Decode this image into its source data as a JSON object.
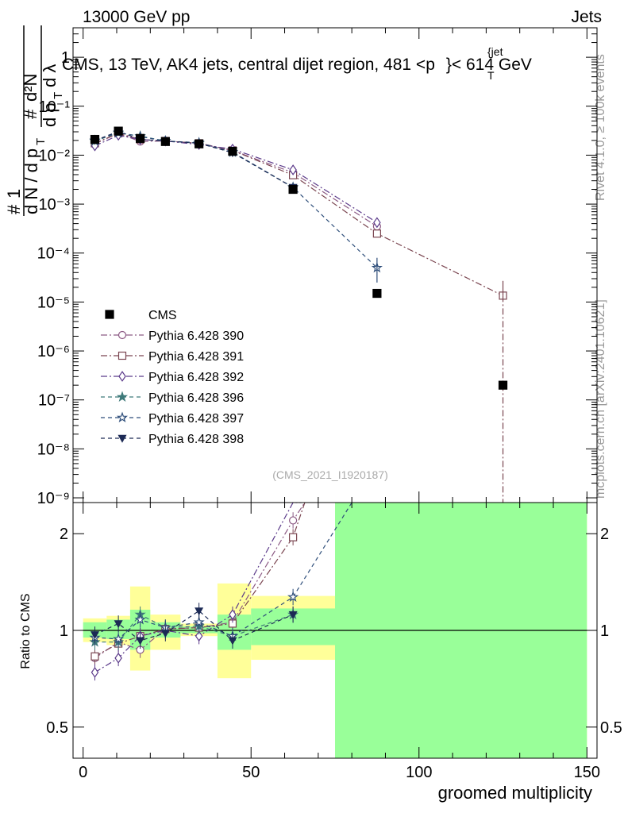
{
  "header": {
    "left": "13000 GeV pp",
    "right": "Jets",
    "plot_title": "CMS, 13 TeV, AK4 jets, central dijet region, 481 <p",
    "plot_title_sup": "{jet",
    "plot_title_sub": "T",
    "plot_title_end": "}< 614 GeV",
    "watermark": "(CMS_2021_I1920187)",
    "side_top": "Rivet 4.1.0, ≥ 100k events",
    "side_bottom": "mcplots.cern.ch [arXiv:2401.10621]"
  },
  "chart_data": [
    {
      "type": "scatter",
      "panel": "main",
      "yscale": "log",
      "title": "CMS, 13 TeV, AK4 jets, central dijet region, 481 <p_T^{jet}< 614 GeV",
      "xlabel": "groomed multiplicity",
      "ylabel": "1/(dN/dp_T) d²N/(dp_T dλ)",
      "xlim": [
        -3,
        153
      ],
      "ylim": [
        8e-10,
        4
      ],
      "y_ticks": [
        {
          "v": 1,
          "label": "1"
        },
        {
          "v": 0.1,
          "label": "10⁻¹"
        },
        {
          "v": 0.01,
          "label": "10⁻²"
        },
        {
          "v": 0.001,
          "label": "10⁻³"
        },
        {
          "v": 0.0001,
          "label": "10⁻⁴"
        },
        {
          "v": 1e-05,
          "label": "10⁻⁵"
        },
        {
          "v": 1e-06,
          "label": "10⁻⁶"
        },
        {
          "v": 1e-07,
          "label": "10⁻⁷"
        },
        {
          "v": 1e-08,
          "label": "10⁻⁸"
        },
        {
          "v": 1e-09,
          "label": "10⁻⁹"
        }
      ],
      "data": {
        "name": "CMS",
        "x": [
          3.5,
          10.5,
          17,
          24.5,
          34.5,
          44.5,
          62.5,
          87.5,
          125
        ],
        "y": [
          0.021,
          0.031,
          0.022,
          0.019,
          0.017,
          0.012,
          0.002,
          1.5e-05,
          2e-07
        ]
      },
      "series": [
        {
          "name": "Pythia 6.428 390",
          "color": "#8c5a84",
          "dash": "8,3,2,3",
          "marker": "circle-open",
          "x": [
            3.5,
            10.5,
            17,
            24.5,
            34.5,
            44.5,
            62.5,
            87.5
          ],
          "y": [
            0.017,
            0.028,
            0.019,
            0.0195,
            0.0175,
            0.0125,
            0.0044,
            0.00035
          ]
        },
        {
          "name": "Pythia 6.428 391",
          "color": "#7a4550",
          "dash": "8,3,2,3",
          "marker": "square-open",
          "x": [
            3.5,
            10.5,
            17,
            24.5,
            34.5,
            44.5,
            62.5,
            87.5,
            125
          ],
          "y": [
            0.0175,
            0.028,
            0.021,
            0.0195,
            0.0175,
            0.0125,
            0.0039,
            0.00025,
            1.35e-05
          ]
        },
        {
          "name": "Pythia 6.428 392",
          "color": "#5b3a8a",
          "dash": "8,3,2,3",
          "marker": "diamond-open",
          "x": [
            3.5,
            10.5,
            17,
            24.5,
            34.5,
            44.5,
            62.5,
            87.5
          ],
          "y": [
            0.0155,
            0.0255,
            0.021,
            0.0195,
            0.0165,
            0.0133,
            0.005,
            0.00042
          ]
        },
        {
          "name": "Pythia 6.428 396",
          "color": "#3f7a7a",
          "dash": "5,4",
          "marker": "star-filled",
          "x": [
            3.5,
            10.5,
            17,
            24.5,
            34.5,
            44.5,
            62.5
          ],
          "y": [
            0.0195,
            0.0285,
            0.0245,
            0.0195,
            0.0175,
            0.0115,
            0.0022
          ]
        },
        {
          "name": "Pythia 6.428 397",
          "color": "#2e4e7a",
          "dash": "5,4",
          "marker": "star-open",
          "x": [
            3.5,
            10.5,
            17,
            24.5,
            34.5,
            44.5,
            62.5,
            87.5
          ],
          "y": [
            0.02,
            0.029,
            0.024,
            0.0195,
            0.018,
            0.0115,
            0.0022,
            5e-05
          ]
        },
        {
          "name": "Pythia 6.428 398",
          "color": "#1c2a55",
          "dash": "5,4",
          "marker": "triangle-down-filled",
          "x": [
            3.5,
            10.5,
            17,
            24.5,
            34.5,
            44.5,
            62.5
          ],
          "y": [
            0.02,
            0.0305,
            0.021,
            0.0195,
            0.0175,
            0.0112,
            0.0022
          ]
        }
      ]
    },
    {
      "type": "scatter",
      "panel": "ratio",
      "yscale": "log",
      "xlabel": "groomed multiplicity",
      "ylabel": "Ratio to CMS",
      "xlim": [
        -3,
        153
      ],
      "ylim": [
        0.4,
        2.5
      ],
      "x_ticks": [
        0,
        50,
        100,
        150
      ],
      "y_ticks": [
        {
          "v": 0.5,
          "label": "0.5"
        },
        {
          "v": 1,
          "label": "1"
        },
        {
          "v": 2,
          "label": "2"
        }
      ],
      "bands": [
        {
          "x0": 0,
          "x1": 7,
          "green": [
            0.95,
            1.06
          ],
          "yellow": [
            0.92,
            1.09
          ]
        },
        {
          "x0": 7,
          "x1": 14,
          "green": [
            0.94,
            1.08
          ],
          "yellow": [
            0.9,
            1.11
          ]
        },
        {
          "x0": 14,
          "x1": 20,
          "green": [
            0.87,
            1.16
          ],
          "yellow": [
            0.75,
            1.37
          ]
        },
        {
          "x0": 20,
          "x1": 29,
          "green": [
            0.95,
            1.06
          ],
          "yellow": [
            0.87,
            1.12
          ]
        },
        {
          "x0": 29,
          "x1": 40,
          "green": [
            0.98,
            1.03
          ],
          "yellow": [
            0.96,
            1.05
          ]
        },
        {
          "x0": 40,
          "x1": 50,
          "green": [
            0.87,
            1.12
          ],
          "yellow": [
            0.71,
            1.4
          ]
        },
        {
          "x0": 50,
          "x1": 75,
          "green": [
            0.9,
            1.17
          ],
          "yellow": [
            0.81,
            1.28
          ]
        },
        {
          "x0": 75,
          "x1": 150,
          "green": [
            0.4,
            2.5
          ],
          "yellow": [
            0.4,
            2.5
          ]
        }
      ],
      "series": [
        {
          "name": "Pythia 6.428 390",
          "x": [
            3.5,
            10.5,
            17,
            24.5,
            34.5,
            44.5,
            62.5,
            66
          ],
          "y": [
            0.82,
            0.92,
            0.87,
            1.01,
            1.02,
            1.06,
            2.2,
            2.5
          ]
        },
        {
          "name": "Pythia 6.428 391",
          "x": [
            3.5,
            10.5,
            17,
            24.5,
            34.5,
            44.5,
            62.5,
            66
          ],
          "y": [
            0.83,
            0.91,
            0.96,
            1.01,
            1.02,
            1.05,
            1.95,
            2.5
          ]
        },
        {
          "name": "Pythia 6.428 392",
          "x": [
            3.5,
            10.5,
            17,
            24.5,
            34.5,
            44.5,
            62.5,
            65
          ],
          "y": [
            0.74,
            0.82,
            0.96,
            1.0,
            0.96,
            1.12,
            2.5,
            2.5
          ]
        },
        {
          "name": "Pythia 6.428 396",
          "x": [
            3.5,
            10.5,
            17,
            24.5,
            34.5,
            44.5,
            62.5
          ],
          "y": [
            0.92,
            0.92,
            1.12,
            1.02,
            1.03,
            0.96,
            1.12
          ]
        },
        {
          "name": "Pythia 6.428 397",
          "x": [
            3.5,
            10.5,
            17,
            24.5,
            34.5,
            44.5,
            62.5,
            80
          ],
          "y": [
            0.95,
            0.94,
            1.08,
            1.02,
            1.06,
            0.96,
            1.27,
            2.5
          ]
        },
        {
          "name": "Pythia 6.428 398",
          "x": [
            3.5,
            10.5,
            17,
            24.5,
            34.5,
            44.5,
            62.5
          ],
          "y": [
            0.97,
            1.05,
            0.93,
            0.98,
            1.15,
            0.93,
            1.12
          ]
        }
      ]
    }
  ]
}
